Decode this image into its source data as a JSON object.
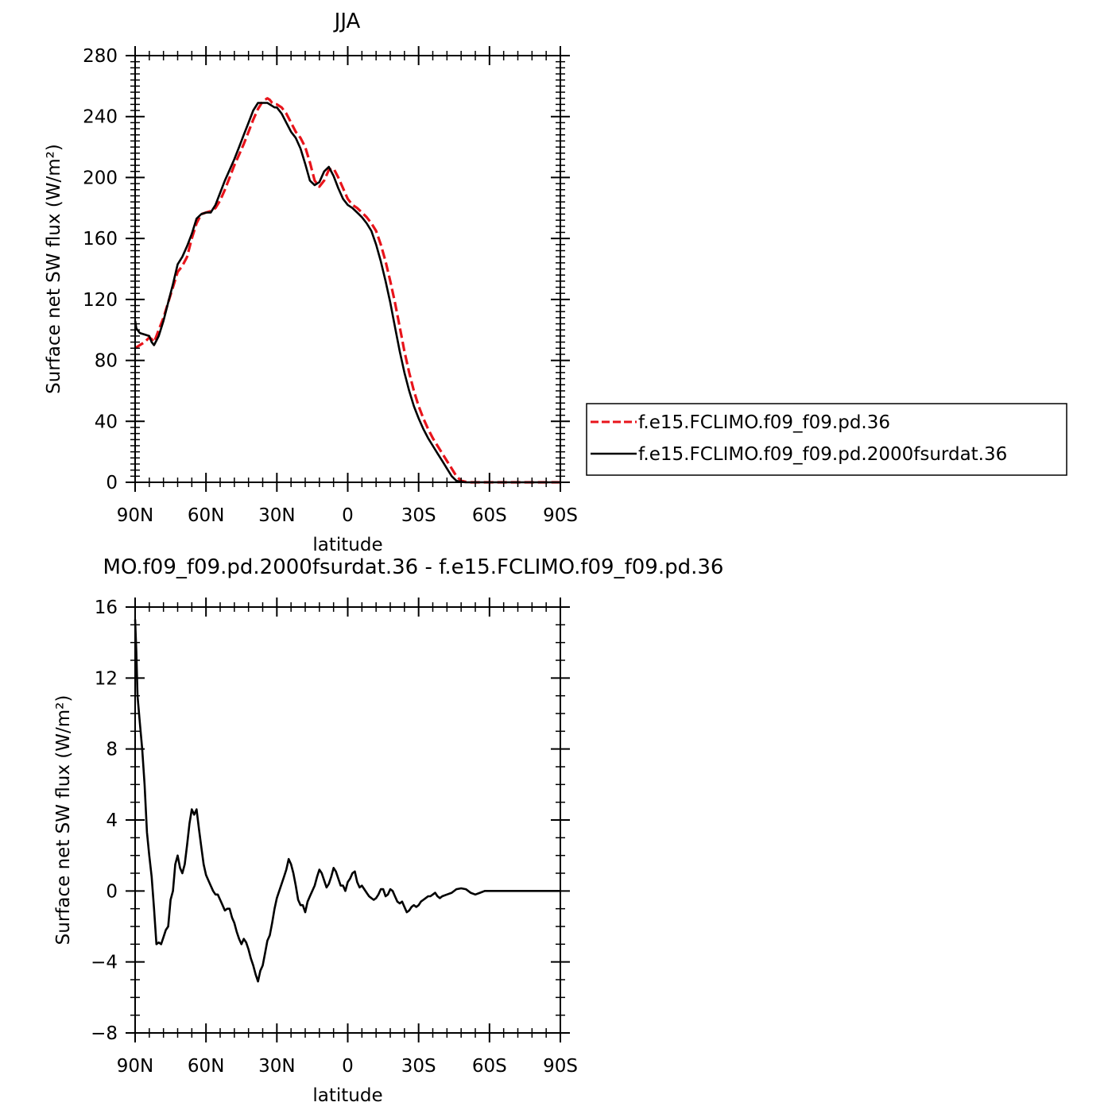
{
  "chart_data": [
    {
      "type": "line",
      "title": "JJA",
      "xlabel": "latitude",
      "ylabel": "Surface net SW flux (W/m²)",
      "xlim": [
        90,
        -90
      ],
      "ylim": [
        0,
        280
      ],
      "x_ticks": [
        90,
        60,
        30,
        0,
        -30,
        -60,
        -90
      ],
      "x_tick_labels": [
        "90N",
        "60N",
        "30N",
        "0",
        "30S",
        "60S",
        "90S"
      ],
      "y_ticks": [
        0,
        40,
        80,
        120,
        160,
        200,
        240,
        280
      ],
      "y_tick_labels": [
        "0",
        "40",
        "80",
        "120",
        "160",
        "200",
        "240",
        "280"
      ],
      "legend_position": "right",
      "series": [
        {
          "name": "f.e15.FCLIMO.f09_f09.pd.36",
          "color": "#e8141b",
          "dash": "dashed",
          "x": [
            90,
            88,
            86,
            84,
            83,
            82,
            81,
            80,
            78,
            76,
            74,
            72,
            70,
            68,
            66,
            64,
            62,
            60,
            58,
            56,
            54,
            52,
            50,
            48,
            46,
            44,
            42,
            40,
            38,
            36,
            34,
            33,
            32,
            31,
            30,
            28,
            26,
            24,
            22,
            20,
            18,
            16,
            14,
            12,
            10,
            8,
            6,
            4,
            2,
            0,
            -2,
            -4,
            -6,
            -8,
            -10,
            -12,
            -14,
            -16,
            -18,
            -20,
            -22,
            -24,
            -26,
            -28,
            -30,
            -32,
            -34,
            -36,
            -38,
            -40,
            -42,
            -44,
            -46,
            -48,
            -50,
            -52,
            -54,
            -56,
            -58,
            -60,
            -62,
            -64,
            -66,
            -68,
            -70,
            -75,
            -80,
            -90
          ],
          "y": [
            88,
            90,
            92,
            95,
            94,
            92,
            96,
            100,
            108,
            118,
            128,
            138,
            142,
            148,
            160,
            170,
            176,
            177,
            178,
            180,
            185,
            192,
            200,
            208,
            215,
            222,
            230,
            238,
            245,
            250,
            252,
            251,
            249,
            248,
            248,
            246,
            242,
            236,
            230,
            226,
            220,
            210,
            198,
            194,
            198,
            205,
            206,
            200,
            193,
            186,
            182,
            180,
            177,
            174,
            170,
            165,
            156,
            145,
            132,
            118,
            102,
            86,
            72,
            60,
            50,
            42,
            35,
            29,
            24,
            19,
            14,
            9,
            4,
            1,
            0.3,
            0,
            0,
            0,
            0,
            0,
            0,
            0,
            0,
            0,
            0,
            0,
            0,
            0
          ]
        },
        {
          "name": "f.e15.FCLIMO.f09_f09.pd.2000fsurdat.36",
          "color": "#000000",
          "dash": "solid",
          "x": [
            90,
            89.5,
            88,
            86,
            84,
            83,
            82,
            81,
            80,
            78,
            76,
            74,
            72,
            70,
            68,
            66,
            64,
            62,
            60,
            58,
            56,
            54,
            52,
            50,
            48,
            46,
            44,
            42,
            40,
            38,
            36,
            34,
            33,
            32,
            31,
            30,
            28,
            26,
            24,
            22,
            20,
            18,
            16,
            14,
            12,
            10,
            8,
            6,
            4,
            2,
            0,
            -2,
            -4,
            -6,
            -8,
            -10,
            -12,
            -14,
            -16,
            -18,
            -20,
            -22,
            -24,
            -26,
            -28,
            -30,
            -32,
            -34,
            -36,
            -38,
            -40,
            -42,
            -44,
            -46,
            -48,
            -50,
            -52,
            -54,
            -56,
            -58,
            -60,
            -62,
            -64,
            -66,
            -68,
            -70,
            -75,
            -80,
            -90
          ],
          "y": [
            106,
            101,
            98,
            97,
            96,
            92,
            90,
            93,
            96,
            106,
            118,
            130,
            143,
            148,
            155,
            163,
            173,
            176,
            177,
            177,
            182,
            190,
            198,
            205,
            212,
            220,
            228,
            236,
            244,
            249,
            249,
            249,
            248,
            247,
            246,
            246,
            242,
            236,
            230,
            226,
            219,
            209,
            198,
            195,
            197,
            204,
            207,
            201,
            193,
            186,
            182,
            180,
            177,
            174,
            170,
            165,
            156,
            145,
            132,
            118,
            102,
            86,
            72,
            60,
            50,
            42,
            35,
            29,
            24,
            19,
            14,
            9,
            4,
            1,
            0.3,
            0,
            0,
            0,
            0,
            0,
            0,
            0,
            0,
            0,
            0,
            0,
            0,
            0,
            0
          ]
        }
      ]
    },
    {
      "type": "line",
      "title": "MO.f09_f09.pd.2000fsurdat.36 - f.e15.FCLIMO.f09_f09.pd.36",
      "xlabel": "latitude",
      "ylabel": "Surface net SW flux (W/m²)",
      "xlim": [
        90,
        -90
      ],
      "ylim": [
        -8,
        16
      ],
      "x_ticks": [
        90,
        60,
        30,
        0,
        -30,
        -60,
        -90
      ],
      "x_tick_labels": [
        "90N",
        "60N",
        "30N",
        "0",
        "30S",
        "60S",
        "90S"
      ],
      "y_ticks": [
        -8,
        -4,
        0,
        4,
        8,
        12,
        16
      ],
      "y_tick_labels": [
        "−8",
        "−4",
        "0",
        "4",
        "8",
        "12",
        "16"
      ],
      "series": [
        {
          "color": "#000000",
          "dash": "solid",
          "x": [
            90,
            89.5,
            89,
            88,
            87,
            86,
            85,
            84,
            83,
            82,
            81,
            80,
            79,
            78,
            77,
            76,
            75,
            74,
            73,
            72,
            71,
            70,
            69,
            68,
            67,
            66,
            65,
            64,
            63,
            62,
            61,
            60,
            59,
            58,
            57,
            56,
            55,
            54,
            53,
            52,
            51,
            50,
            49,
            48,
            47,
            46,
            45,
            44,
            43,
            42,
            41,
            40,
            39,
            38,
            37,
            36,
            35,
            34,
            33,
            32,
            31,
            30,
            29,
            28,
            27,
            26,
            25,
            24,
            23,
            22,
            21,
            20,
            19,
            18,
            17,
            16,
            15,
            14,
            13,
            12,
            11,
            10,
            9,
            8,
            7,
            6,
            5,
            4,
            3,
            2,
            1,
            0,
            -1,
            -2,
            -3,
            -4,
            -5,
            -6,
            -7,
            -8,
            -9,
            -10,
            -11,
            -12,
            -13,
            -14,
            -15,
            -16,
            -17,
            -18,
            -19,
            -20,
            -21,
            -22,
            -23,
            -24,
            -25,
            -26,
            -27,
            -28,
            -29,
            -30,
            -31,
            -32,
            -33,
            -34,
            -35,
            -36,
            -37,
            -38,
            -39,
            -40,
            -42,
            -44,
            -46,
            -48,
            -50,
            -52,
            -54,
            -56,
            -58,
            -60,
            -62,
            -64,
            -66,
            -68,
            -70,
            -75,
            -80,
            -90
          ],
          "y": [
            15.3,
            13.5,
            11,
            9.5,
            8,
            6,
            3.3,
            2,
            0.8,
            -1,
            -3,
            -2.9,
            -3,
            -2.6,
            -2.2,
            -2,
            -0.5,
            0,
            1.5,
            2,
            1.3,
            1,
            1.5,
            2.6,
            3.8,
            4.6,
            4.3,
            4.6,
            3.5,
            2.5,
            1.5,
            0.9,
            0.6,
            0.3,
            0,
            -0.2,
            -0.2,
            -0.5,
            -0.8,
            -1.1,
            -1,
            -1,
            -1.5,
            -1.8,
            -2.3,
            -2.7,
            -3,
            -2.7,
            -2.9,
            -3.3,
            -3.8,
            -4.2,
            -4.7,
            -5.1,
            -4.5,
            -4.2,
            -3.5,
            -2.8,
            -2.5,
            -1.8,
            -1,
            -0.4,
            0,
            0.4,
            0.8,
            1.2,
            1.8,
            1.5,
            1,
            0.3,
            -0.5,
            -0.8,
            -0.8,
            -1.2,
            -0.6,
            -0.3,
            0,
            0.3,
            0.8,
            1.2,
            1,
            0.6,
            0.2,
            0.4,
            0.8,
            1.3,
            1.1,
            0.7,
            0.3,
            0.3,
            0,
            0.5,
            0.7,
            1,
            1.1,
            0.5,
            0.2,
            0.3,
            0.1,
            -0.1,
            -0.3,
            -0.4,
            -0.5,
            -0.4,
            -0.2,
            0.1,
            0.1,
            -0.3,
            -0.2,
            0.1,
            0,
            -0.3,
            -0.6,
            -0.7,
            -0.6,
            -0.9,
            -1.2,
            -1.1,
            -0.9,
            -0.8,
            -0.9,
            -0.8,
            -0.6,
            -0.5,
            -0.4,
            -0.3,
            -0.3,
            -0.2,
            -0.1,
            -0.3,
            -0.4,
            -0.3,
            -0.2,
            -0.1,
            0.1,
            0.15,
            0.1,
            -0.1,
            -0.2,
            -0.1,
            0,
            0,
            0,
            0,
            0,
            0,
            0,
            0,
            0,
            0
          ]
        }
      ]
    }
  ]
}
